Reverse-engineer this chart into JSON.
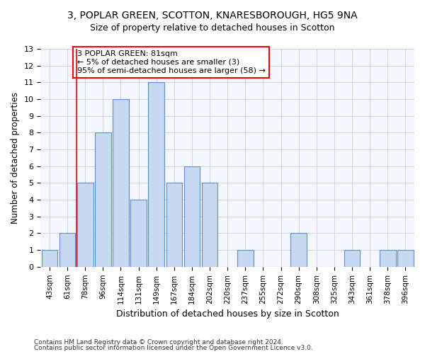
{
  "title1": "3, POPLAR GREEN, SCOTTON, KNARESBOROUGH, HG5 9NA",
  "title2": "Size of property relative to detached houses in Scotton",
  "xlabel": "Distribution of detached houses by size in Scotton",
  "ylabel": "Number of detached properties",
  "categories": [
    "43sqm",
    "61sqm",
    "78sqm",
    "96sqm",
    "114sqm",
    "131sqm",
    "149sqm",
    "167sqm",
    "184sqm",
    "202sqm",
    "220sqm",
    "237sqm",
    "255sqm",
    "272sqm",
    "290sqm",
    "308sqm",
    "325sqm",
    "343sqm",
    "361sqm",
    "378sqm",
    "396sqm"
  ],
  "values": [
    1,
    2,
    5,
    8,
    10,
    4,
    11,
    5,
    6,
    5,
    0,
    1,
    0,
    0,
    2,
    0,
    0,
    1,
    0,
    1,
    1
  ],
  "bar_color": "#c8d8f0",
  "bar_edge_color": "#5b8fd4",
  "red_line_index": 2,
  "annotation_text": "3 POPLAR GREEN: 81sqm\n← 5% of detached houses are smaller (3)\n95% of semi-detached houses are larger (58) →",
  "annotation_box_color": "white",
  "annotation_box_edge_color": "red",
  "ylim": [
    0,
    13
  ],
  "yticks": [
    0,
    1,
    2,
    3,
    4,
    5,
    6,
    7,
    8,
    9,
    10,
    11,
    12,
    13
  ],
  "footnote1": "Contains HM Land Registry data © Crown copyright and database right 2024.",
  "footnote2": "Contains public sector information licensed under the Open Government Licence v3.0.",
  "background_color": "#ffffff",
  "plot_bg_color": "#f5f7ff",
  "grid_color": "#c8d0e8"
}
